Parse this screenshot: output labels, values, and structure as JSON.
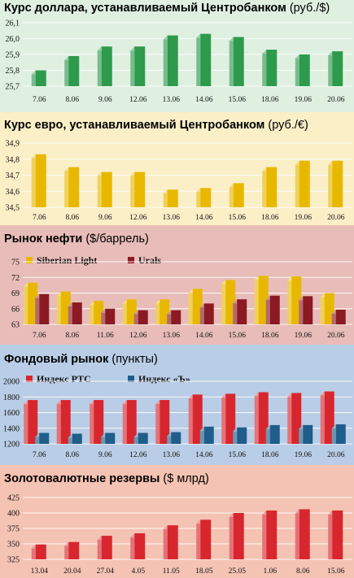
{
  "colors": {
    "green": "#2e9a4c",
    "yellow": "#e8b800",
    "red": "#d8262e",
    "darkred": "#8b1a22",
    "blue": "#1f5d8a",
    "bg_usd": "#dff0e1",
    "bg_eur": "#fbefc7",
    "bg_oil": "#e8bcb8",
    "bg_stock": "#b9cde6",
    "bg_gold": "#f5c3b3"
  },
  "panels": {
    "usd": {
      "title_bold": "Курс доллара, устанавливаемый Центробанком",
      "title_unit": " (руб./$)"
    },
    "eur": {
      "title_bold": "Курс евро, устанавливаемый Центробанком",
      "title_unit": " (руб./€)"
    },
    "oil": {
      "title_bold": "Рынок нефти",
      "title_unit": " ($/баррель)",
      "legend": [
        "Siberian Light",
        "Urals"
      ]
    },
    "stock": {
      "title_bold": "Фондовый рынок",
      "title_unit": " (пункты)",
      "legend": [
        "Индекс РТС",
        "Индекс «Ъ»"
      ]
    },
    "gold": {
      "title_bold": "Золотовалютные резервы",
      "title_unit": " ($ млрд)"
    }
  },
  "chart_data": [
    {
      "id": "usd",
      "type": "bar",
      "categories": [
        "7.06",
        "8.06",
        "9.06",
        "12.06",
        "13.06",
        "14.06",
        "15.06",
        "18.06",
        "19.06",
        "20.06"
      ],
      "series": [
        {
          "values": [
            25.8,
            25.89,
            25.95,
            25.95,
            26.02,
            26.03,
            26.01,
            25.93,
            25.9,
            25.92
          ]
        }
      ],
      "ylim": [
        25.7,
        26.1
      ],
      "yticks": [
        "25,7",
        "25,8",
        "25,9",
        "26,0",
        "26,1"
      ],
      "ytick_values": [
        25.7,
        25.8,
        25.9,
        26.0,
        26.1
      ],
      "grid": true
    },
    {
      "id": "eur",
      "type": "bar",
      "categories": [
        "7.06",
        "8.06",
        "9.06",
        "12.06",
        "13.06",
        "14.06",
        "15.06",
        "18.06",
        "19.06",
        "20.06"
      ],
      "series": [
        {
          "values": [
            34.83,
            34.75,
            34.72,
            34.72,
            34.61,
            34.62,
            34.65,
            34.75,
            34.79,
            34.79
          ]
        }
      ],
      "ylim": [
        34.5,
        34.9
      ],
      "yticks": [
        "34,5",
        "34,6",
        "34,7",
        "34,8",
        "34,9"
      ],
      "ytick_values": [
        34.5,
        34.6,
        34.7,
        34.8,
        34.9
      ],
      "grid": true
    },
    {
      "id": "oil",
      "type": "bar",
      "categories": [
        "7.06",
        "8.06",
        "11.06",
        "12.06",
        "13.06",
        "14.06",
        "15.06",
        "18.06",
        "19.06",
        "20.06"
      ],
      "series": [
        {
          "name": "Siberian Light",
          "values": [
            71.0,
            69.3,
            67.5,
            67.8,
            67.8,
            69.8,
            71.5,
            72.3,
            72.2,
            69.0
          ]
        },
        {
          "name": "Urals",
          "values": [
            68.8,
            67.2,
            66.0,
            65.7,
            65.7,
            67.0,
            67.8,
            68.5,
            68.4,
            65.8
          ]
        }
      ],
      "ylim": [
        63,
        75
      ],
      "yticks": [
        "63",
        "66",
        "69",
        "72",
        "75"
      ],
      "ytick_values": [
        63,
        66,
        69,
        72,
        75
      ],
      "grid": true
    },
    {
      "id": "stock",
      "type": "bar",
      "categories": [
        "7.06",
        "8.06",
        "9.06",
        "12.06",
        "13.06",
        "14.06",
        "15.06",
        "18.06",
        "19.06",
        "20.06"
      ],
      "series": [
        {
          "name": "Индекс РТС",
          "values": [
            1760,
            1760,
            1760,
            1760,
            1760,
            1830,
            1840,
            1860,
            1850,
            1870
          ]
        },
        {
          "name": "Индекс «Ъ»",
          "values": [
            1340,
            1330,
            1340,
            1340,
            1350,
            1420,
            1410,
            1440,
            1440,
            1450
          ]
        }
      ],
      "ylim": [
        1200,
        2000
      ],
      "yticks": [
        "1200",
        "1400",
        "1600",
        "1800",
        "2000"
      ],
      "ytick_values": [
        1200,
        1400,
        1600,
        1800,
        2000
      ],
      "grid": true
    },
    {
      "id": "gold",
      "type": "bar",
      "categories": [
        "13.04",
        "20.04",
        "27.04",
        "4.05",
        "11.05",
        "18.05",
        "25.05",
        "1.06",
        "8.06",
        "15.06"
      ],
      "series": [
        {
          "values": [
            349,
            353,
            363,
            367,
            380,
            389,
            400,
            404,
            406,
            404
          ]
        }
      ],
      "ylim": [
        325,
        425
      ],
      "yticks": [
        "325",
        "350",
        "375",
        "400",
        "425"
      ],
      "ytick_values": [
        325,
        350,
        375,
        400,
        425
      ],
      "grid": true
    }
  ]
}
